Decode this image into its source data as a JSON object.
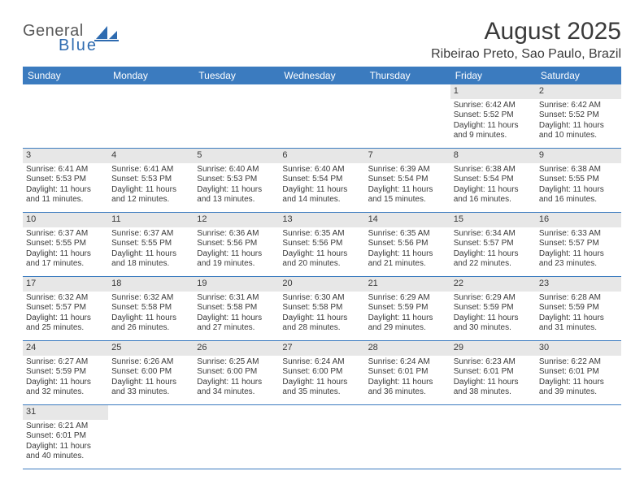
{
  "logo": {
    "word1": "General",
    "word2": "Blue",
    "color1": "#5a5a5a",
    "color2": "#2e6bb0"
  },
  "title": "August 2025",
  "location": "Ribeirao Preto, Sao Paulo, Brazil",
  "colors": {
    "header_bg": "#3b7bbf",
    "header_text": "#ffffff",
    "daynum_bg": "#e7e7e7",
    "rule": "#3b7bbf",
    "text": "#3a3a3a",
    "page_bg": "#ffffff"
  },
  "weekdays": [
    "Sunday",
    "Monday",
    "Tuesday",
    "Wednesday",
    "Thursday",
    "Friday",
    "Saturday"
  ],
  "weeks": [
    [
      null,
      null,
      null,
      null,
      null,
      {
        "day": "1",
        "sunrise": "Sunrise: 6:42 AM",
        "sunset": "Sunset: 5:52 PM",
        "daylight1": "Daylight: 11 hours",
        "daylight2": "and 9 minutes."
      },
      {
        "day": "2",
        "sunrise": "Sunrise: 6:42 AM",
        "sunset": "Sunset: 5:52 PM",
        "daylight1": "Daylight: 11 hours",
        "daylight2": "and 10 minutes."
      }
    ],
    [
      {
        "day": "3",
        "sunrise": "Sunrise: 6:41 AM",
        "sunset": "Sunset: 5:53 PM",
        "daylight1": "Daylight: 11 hours",
        "daylight2": "and 11 minutes."
      },
      {
        "day": "4",
        "sunrise": "Sunrise: 6:41 AM",
        "sunset": "Sunset: 5:53 PM",
        "daylight1": "Daylight: 11 hours",
        "daylight2": "and 12 minutes."
      },
      {
        "day": "5",
        "sunrise": "Sunrise: 6:40 AM",
        "sunset": "Sunset: 5:53 PM",
        "daylight1": "Daylight: 11 hours",
        "daylight2": "and 13 minutes."
      },
      {
        "day": "6",
        "sunrise": "Sunrise: 6:40 AM",
        "sunset": "Sunset: 5:54 PM",
        "daylight1": "Daylight: 11 hours",
        "daylight2": "and 14 minutes."
      },
      {
        "day": "7",
        "sunrise": "Sunrise: 6:39 AM",
        "sunset": "Sunset: 5:54 PM",
        "daylight1": "Daylight: 11 hours",
        "daylight2": "and 15 minutes."
      },
      {
        "day": "8",
        "sunrise": "Sunrise: 6:38 AM",
        "sunset": "Sunset: 5:54 PM",
        "daylight1": "Daylight: 11 hours",
        "daylight2": "and 16 minutes."
      },
      {
        "day": "9",
        "sunrise": "Sunrise: 6:38 AM",
        "sunset": "Sunset: 5:55 PM",
        "daylight1": "Daylight: 11 hours",
        "daylight2": "and 16 minutes."
      }
    ],
    [
      {
        "day": "10",
        "sunrise": "Sunrise: 6:37 AM",
        "sunset": "Sunset: 5:55 PM",
        "daylight1": "Daylight: 11 hours",
        "daylight2": "and 17 minutes."
      },
      {
        "day": "11",
        "sunrise": "Sunrise: 6:37 AM",
        "sunset": "Sunset: 5:55 PM",
        "daylight1": "Daylight: 11 hours",
        "daylight2": "and 18 minutes."
      },
      {
        "day": "12",
        "sunrise": "Sunrise: 6:36 AM",
        "sunset": "Sunset: 5:56 PM",
        "daylight1": "Daylight: 11 hours",
        "daylight2": "and 19 minutes."
      },
      {
        "day": "13",
        "sunrise": "Sunrise: 6:35 AM",
        "sunset": "Sunset: 5:56 PM",
        "daylight1": "Daylight: 11 hours",
        "daylight2": "and 20 minutes."
      },
      {
        "day": "14",
        "sunrise": "Sunrise: 6:35 AM",
        "sunset": "Sunset: 5:56 PM",
        "daylight1": "Daylight: 11 hours",
        "daylight2": "and 21 minutes."
      },
      {
        "day": "15",
        "sunrise": "Sunrise: 6:34 AM",
        "sunset": "Sunset: 5:57 PM",
        "daylight1": "Daylight: 11 hours",
        "daylight2": "and 22 minutes."
      },
      {
        "day": "16",
        "sunrise": "Sunrise: 6:33 AM",
        "sunset": "Sunset: 5:57 PM",
        "daylight1": "Daylight: 11 hours",
        "daylight2": "and 23 minutes."
      }
    ],
    [
      {
        "day": "17",
        "sunrise": "Sunrise: 6:32 AM",
        "sunset": "Sunset: 5:57 PM",
        "daylight1": "Daylight: 11 hours",
        "daylight2": "and 25 minutes."
      },
      {
        "day": "18",
        "sunrise": "Sunrise: 6:32 AM",
        "sunset": "Sunset: 5:58 PM",
        "daylight1": "Daylight: 11 hours",
        "daylight2": "and 26 minutes."
      },
      {
        "day": "19",
        "sunrise": "Sunrise: 6:31 AM",
        "sunset": "Sunset: 5:58 PM",
        "daylight1": "Daylight: 11 hours",
        "daylight2": "and 27 minutes."
      },
      {
        "day": "20",
        "sunrise": "Sunrise: 6:30 AM",
        "sunset": "Sunset: 5:58 PM",
        "daylight1": "Daylight: 11 hours",
        "daylight2": "and 28 minutes."
      },
      {
        "day": "21",
        "sunrise": "Sunrise: 6:29 AM",
        "sunset": "Sunset: 5:59 PM",
        "daylight1": "Daylight: 11 hours",
        "daylight2": "and 29 minutes."
      },
      {
        "day": "22",
        "sunrise": "Sunrise: 6:29 AM",
        "sunset": "Sunset: 5:59 PM",
        "daylight1": "Daylight: 11 hours",
        "daylight2": "and 30 minutes."
      },
      {
        "day": "23",
        "sunrise": "Sunrise: 6:28 AM",
        "sunset": "Sunset: 5:59 PM",
        "daylight1": "Daylight: 11 hours",
        "daylight2": "and 31 minutes."
      }
    ],
    [
      {
        "day": "24",
        "sunrise": "Sunrise: 6:27 AM",
        "sunset": "Sunset: 5:59 PM",
        "daylight1": "Daylight: 11 hours",
        "daylight2": "and 32 minutes."
      },
      {
        "day": "25",
        "sunrise": "Sunrise: 6:26 AM",
        "sunset": "Sunset: 6:00 PM",
        "daylight1": "Daylight: 11 hours",
        "daylight2": "and 33 minutes."
      },
      {
        "day": "26",
        "sunrise": "Sunrise: 6:25 AM",
        "sunset": "Sunset: 6:00 PM",
        "daylight1": "Daylight: 11 hours",
        "daylight2": "and 34 minutes."
      },
      {
        "day": "27",
        "sunrise": "Sunrise: 6:24 AM",
        "sunset": "Sunset: 6:00 PM",
        "daylight1": "Daylight: 11 hours",
        "daylight2": "and 35 minutes."
      },
      {
        "day": "28",
        "sunrise": "Sunrise: 6:24 AM",
        "sunset": "Sunset: 6:01 PM",
        "daylight1": "Daylight: 11 hours",
        "daylight2": "and 36 minutes."
      },
      {
        "day": "29",
        "sunrise": "Sunrise: 6:23 AM",
        "sunset": "Sunset: 6:01 PM",
        "daylight1": "Daylight: 11 hours",
        "daylight2": "and 38 minutes."
      },
      {
        "day": "30",
        "sunrise": "Sunrise: 6:22 AM",
        "sunset": "Sunset: 6:01 PM",
        "daylight1": "Daylight: 11 hours",
        "daylight2": "and 39 minutes."
      }
    ],
    [
      {
        "day": "31",
        "sunrise": "Sunrise: 6:21 AM",
        "sunset": "Sunset: 6:01 PM",
        "daylight1": "Daylight: 11 hours",
        "daylight2": "and 40 minutes."
      },
      null,
      null,
      null,
      null,
      null,
      null
    ]
  ]
}
